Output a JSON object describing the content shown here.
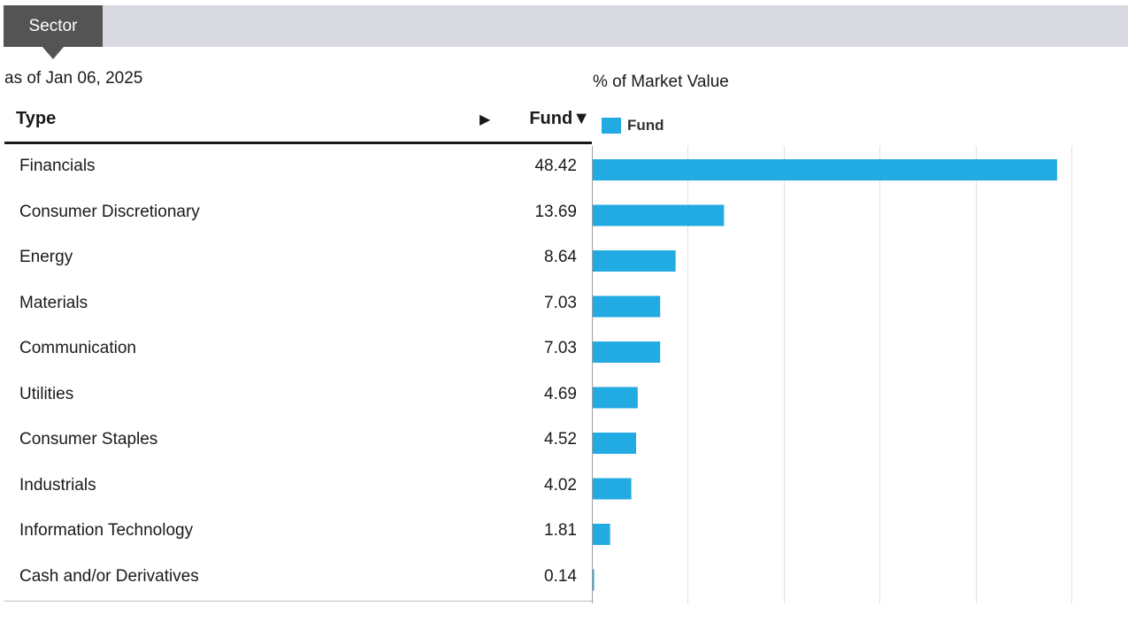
{
  "tab": {
    "label": "Sector"
  },
  "as_of": "as of Jan 06, 2025",
  "table": {
    "type_header": "Type",
    "expand_arrow": "▶",
    "fund_header": "Fund▼",
    "rows": [
      {
        "type": "Financials",
        "value": "48.42"
      },
      {
        "type": "Consumer Discretionary",
        "value": "13.69"
      },
      {
        "type": "Energy",
        "value": "8.64"
      },
      {
        "type": "Materials",
        "value": "7.03"
      },
      {
        "type": "Communication",
        "value": "7.03"
      },
      {
        "type": "Utilities",
        "value": "4.69"
      },
      {
        "type": "Consumer Staples",
        "value": "4.52"
      },
      {
        "type": "Industrials",
        "value": "4.02"
      },
      {
        "type": "Information Technology",
        "value": "1.81"
      },
      {
        "type": "Cash and/or Derivatives",
        "value": "0.14"
      }
    ]
  },
  "chart_data": {
    "type": "bar",
    "orientation": "horizontal",
    "title": "% of Market Value",
    "categories": [
      "Financials",
      "Consumer Discretionary",
      "Energy",
      "Materials",
      "Communication",
      "Utilities",
      "Consumer Staples",
      "Industrials",
      "Information Technology",
      "Cash and/or Derivatives"
    ],
    "series": [
      {
        "name": "Fund",
        "values": [
          48.42,
          13.69,
          8.64,
          7.03,
          7.03,
          4.69,
          4.52,
          4.02,
          1.81,
          0.14
        ]
      }
    ],
    "xlim": [
      0,
      50
    ],
    "grid": true,
    "legend": "top-left"
  },
  "colors": {
    "bar": "#22aae2",
    "tab_active": "#545454",
    "tab_bar": "#d9d9e1",
    "grid": "#e0e0e0"
  }
}
